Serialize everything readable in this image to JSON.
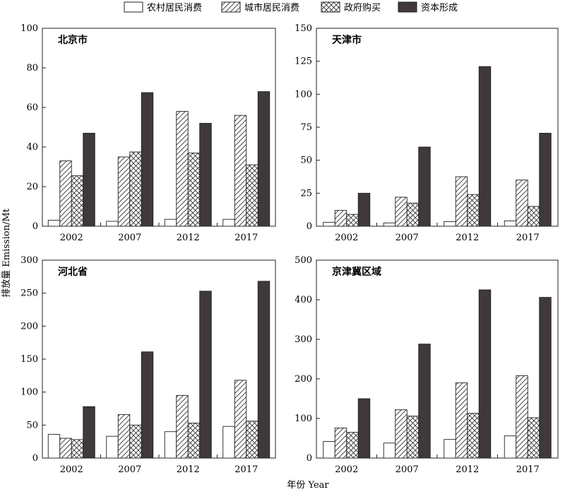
{
  "chart_data": {
    "type": "bar",
    "ylabel": "排放量 Emission/Mt",
    "xlabel": "年份 Year",
    "legend_position": "top",
    "series_names": [
      "农村居民消费",
      "城市居民消费",
      "政府购买",
      "资本形成"
    ],
    "series_styles": [
      "empty",
      "diagonal-hatch",
      "crosshatch",
      "dark-fill"
    ],
    "categories": [
      "2002",
      "2007",
      "2012",
      "2017"
    ],
    "colors": {
      "dark_fill": "#3f3a39",
      "stroke": "#222222"
    },
    "panels": [
      {
        "title": "北京市",
        "ylim": [
          0,
          100
        ],
        "yticks": [
          0,
          20,
          40,
          60,
          80,
          100
        ],
        "series": [
          {
            "name": "农村居民消费",
            "values": [
              3,
              2.5,
              3.5,
              3.5
            ]
          },
          {
            "name": "城市居民消费",
            "values": [
              33,
              35,
              58,
              56
            ]
          },
          {
            "name": "政府购买",
            "values": [
              25.5,
              37.5,
              37,
              31
            ]
          },
          {
            "name": "资本形成",
            "values": [
              47,
              67.5,
              52,
              68
            ]
          }
        ]
      },
      {
        "title": "天津市",
        "ylim": [
          0,
          150
        ],
        "yticks": [
          0,
          25,
          50,
          75,
          100,
          125,
          150
        ],
        "series": [
          {
            "name": "农村居民消费",
            "values": [
              3,
              2.5,
              3.5,
              4
            ]
          },
          {
            "name": "城市居民消费",
            "values": [
              12,
              22,
              37.5,
              35
            ]
          },
          {
            "name": "政府购买",
            "values": [
              9,
              17.5,
              24,
              15
            ]
          },
          {
            "name": "资本形成",
            "values": [
              25,
              60,
              121,
              70.5
            ]
          }
        ]
      },
      {
        "title": "河北省",
        "ylim": [
          0,
          300
        ],
        "yticks": [
          0,
          50,
          100,
          150,
          200,
          250,
          300
        ],
        "series": [
          {
            "name": "农村居民消费",
            "values": [
              36,
              33,
              40,
              48
            ]
          },
          {
            "name": "城市居民消费",
            "values": [
              30,
              66,
              95,
              118
            ]
          },
          {
            "name": "政府购买",
            "values": [
              28,
              50,
              53,
              56
            ]
          },
          {
            "name": "资本形成",
            "values": [
              78,
              161,
              253,
              268
            ]
          }
        ]
      },
      {
        "title": "京津冀区域",
        "ylim": [
          0,
          500
        ],
        "yticks": [
          0,
          100,
          200,
          300,
          400,
          500
        ],
        "series": [
          {
            "name": "农村居民消费",
            "values": [
              42,
              38,
              47,
              56
            ]
          },
          {
            "name": "城市居民消费",
            "values": [
              76,
              122,
              190,
              208
            ]
          },
          {
            "name": "政府购买",
            "values": [
              65,
              106,
              113,
              102
            ]
          },
          {
            "name": "资本形成",
            "values": [
              150,
              288,
              425,
              406
            ]
          }
        ]
      }
    ]
  }
}
